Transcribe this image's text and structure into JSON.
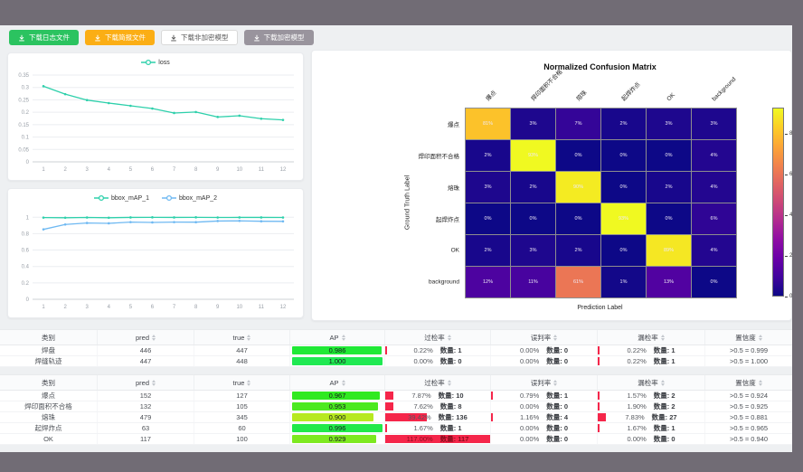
{
  "toolbar": {
    "buttons": [
      {
        "name": "download-log-file-button",
        "label": "下载日志文件",
        "style": "green"
      },
      {
        "name": "download-report-file-button",
        "label": "下载简报文件",
        "style": "orange"
      },
      {
        "name": "download-unencrypted-model-button",
        "label": "下载非加密模型",
        "style": "white"
      },
      {
        "name": "download-encrypted-model-button",
        "label": "下载加密模型",
        "style": "gray"
      }
    ]
  },
  "chart_data": [
    {
      "id": "loss-chart",
      "type": "line",
      "x": [
        1,
        2,
        3,
        4,
        5,
        6,
        7,
        8,
        9,
        10,
        11,
        12
      ],
      "ylim": [
        0,
        0.35
      ],
      "yticks": [
        0,
        0.05,
        0.1,
        0.15,
        0.2,
        0.25,
        0.3,
        0.35
      ],
      "legend_position": "top",
      "grid": true,
      "series": [
        {
          "name": "loss",
          "color": "#2ed0ab",
          "values": [
            0.305,
            0.273,
            0.249,
            0.237,
            0.226,
            0.215,
            0.197,
            0.201,
            0.181,
            0.186,
            0.174,
            0.169
          ]
        }
      ]
    },
    {
      "id": "bbox-map-chart",
      "type": "line",
      "x": [
        1,
        2,
        3,
        4,
        5,
        6,
        7,
        8,
        9,
        10,
        11,
        12
      ],
      "ylim": [
        0,
        1.08
      ],
      "yticks": [
        0,
        0.2,
        0.4,
        0.6,
        0.8,
        1
      ],
      "legend_position": "top",
      "grid": true,
      "series": [
        {
          "name": "bbox_mAP_1",
          "color": "#2ed0ab",
          "values": [
            0.996,
            0.994,
            0.997,
            0.994,
            0.998,
            0.999,
            0.998,
            0.999,
            0.997,
            0.998,
            0.998,
            0.997
          ]
        },
        {
          "name": "bbox_mAP_2",
          "color": "#6fb9f2",
          "values": [
            0.852,
            0.912,
            0.93,
            0.926,
            0.941,
            0.937,
            0.941,
            0.94,
            0.954,
            0.956,
            0.951,
            0.95
          ]
        }
      ]
    },
    {
      "id": "confusion-matrix",
      "type": "heatmap",
      "title": "Normalized Confusion Matrix",
      "xlabel": "Prediction Label",
      "ylabel": "Ground Truth Label",
      "labels": [
        "爆点",
        "焊印面积不合格",
        "熔珠",
        "起焊炸点",
        "OK",
        "background"
      ],
      "unit": "%",
      "vmax": 93,
      "colorbar_ticks": [
        0,
        20,
        40,
        60,
        80
      ],
      "matrix": [
        [
          81,
          3,
          7,
          2,
          3,
          3
        ],
        [
          2,
          93,
          0,
          0,
          0,
          4
        ],
        [
          3,
          2,
          90,
          0,
          2,
          4
        ],
        [
          0,
          0,
          0,
          93,
          0,
          6
        ],
        [
          2,
          3,
          2,
          0,
          89,
          4
        ],
        [
          12,
          11,
          61,
          1,
          13,
          0
        ]
      ]
    }
  ],
  "tables": [
    {
      "name": "metrics-table-1",
      "headers": [
        {
          "label": "类别",
          "sortable": false
        },
        {
          "label": "pred",
          "sortable": true
        },
        {
          "label": "true",
          "sortable": true
        },
        {
          "label": "AP",
          "sortable": true
        },
        {
          "label": "过检率",
          "sortable": true
        },
        {
          "label": "误判率",
          "sortable": true
        },
        {
          "label": "漏检率",
          "sortable": true
        },
        {
          "label": "置信度",
          "sortable": true
        }
      ],
      "rows": [
        {
          "cls": "焊盘",
          "pred": "446",
          "true": "447",
          "ap": {
            "value": 0.986,
            "label": "0.986"
          },
          "over": {
            "pct": 0.22,
            "label": "0.22%",
            "count": "数量: 1"
          },
          "mis": {
            "pct": 0.0,
            "label": "0.00%",
            "count": "数量: 0"
          },
          "miss": {
            "pct": 0.22,
            "label": "0.22%",
            "count": "数量: 1"
          },
          "conf": ">0.5 = 0.999"
        },
        {
          "cls": "焊缝轨迹",
          "pred": "447",
          "true": "448",
          "ap": {
            "value": 1.0,
            "label": "1.000"
          },
          "over": {
            "pct": 0.0,
            "label": "0.00%",
            "count": "数量: 0"
          },
          "mis": {
            "pct": 0.0,
            "label": "0.00%",
            "count": "数量: 0"
          },
          "miss": {
            "pct": 0.22,
            "label": "0.22%",
            "count": "数量: 1"
          },
          "conf": ">0.5 = 1.000"
        }
      ]
    },
    {
      "name": "metrics-table-2",
      "headers": [
        {
          "label": "类别",
          "sortable": false
        },
        {
          "label": "pred",
          "sortable": true
        },
        {
          "label": "true",
          "sortable": true
        },
        {
          "label": "AP",
          "sortable": true
        },
        {
          "label": "过检率",
          "sortable": true
        },
        {
          "label": "误判率",
          "sortable": true
        },
        {
          "label": "漏检率",
          "sortable": true
        },
        {
          "label": "置信度",
          "sortable": true
        }
      ],
      "rows": [
        {
          "cls": "爆点",
          "pred": "152",
          "true": "127",
          "ap": {
            "value": 0.967,
            "label": "0.967"
          },
          "over": {
            "pct": 7.87,
            "label": "7.87%",
            "count": "数量: 10"
          },
          "mis": {
            "pct": 0.79,
            "label": "0.79%",
            "count": "数量: 1"
          },
          "miss": {
            "pct": 1.57,
            "label": "1.57%",
            "count": "数量: 2"
          },
          "conf": ">0.5 = 0.924"
        },
        {
          "cls": "焊印面积不合格",
          "pred": "132",
          "true": "105",
          "ap": {
            "value": 0.953,
            "label": "0.953"
          },
          "over": {
            "pct": 7.62,
            "label": "7.62%",
            "count": "数量: 8"
          },
          "mis": {
            "pct": 0.0,
            "label": "0.00%",
            "count": "数量: 0"
          },
          "miss": {
            "pct": 1.9,
            "label": "1.90%",
            "count": "数量: 2"
          },
          "conf": ">0.5 = 0.925"
        },
        {
          "cls": "熔珠",
          "pred": "479",
          "true": "345",
          "ap": {
            "value": 0.9,
            "label": "0.900"
          },
          "over": {
            "pct": 39.42,
            "label": "39.42%",
            "count": "数量: 136"
          },
          "mis": {
            "pct": 1.16,
            "label": "1.16%",
            "count": "数量: 4"
          },
          "miss": {
            "pct": 7.83,
            "label": "7.83%",
            "count": "数量: 27"
          },
          "conf": ">0.5 = 0.881"
        },
        {
          "cls": "起焊炸点",
          "pred": "63",
          "true": "60",
          "ap": {
            "value": 0.996,
            "label": "0.996"
          },
          "over": {
            "pct": 1.67,
            "label": "1.67%",
            "count": "数量: 1"
          },
          "mis": {
            "pct": 0.0,
            "label": "0.00%",
            "count": "数量: 0"
          },
          "miss": {
            "pct": 1.67,
            "label": "1.67%",
            "count": "数量: 1"
          },
          "conf": ">0.5 = 0.965"
        },
        {
          "cls": "OK",
          "pred": "117",
          "true": "100",
          "ap": {
            "value": 0.929,
            "label": "0.929"
          },
          "over": {
            "pct": 117.0,
            "label": "117.00%",
            "count": "数量: 117"
          },
          "mis": {
            "pct": 0.0,
            "label": "0.00%",
            "count": "数量: 0"
          },
          "miss": {
            "pct": 0.0,
            "label": "0.00%",
            "count": "数量: 0"
          },
          "conf": ">0.5 = 0.940"
        }
      ]
    }
  ],
  "colors": {
    "chrome": "#716c75",
    "page_bg": "#eef0f2",
    "rate_bar": "#f5264a",
    "teal_series": "#2ed0ab",
    "blue_series": "#6fb9f2",
    "plasma_low": "#0d0887",
    "plasma_high": "#f0f921"
  }
}
